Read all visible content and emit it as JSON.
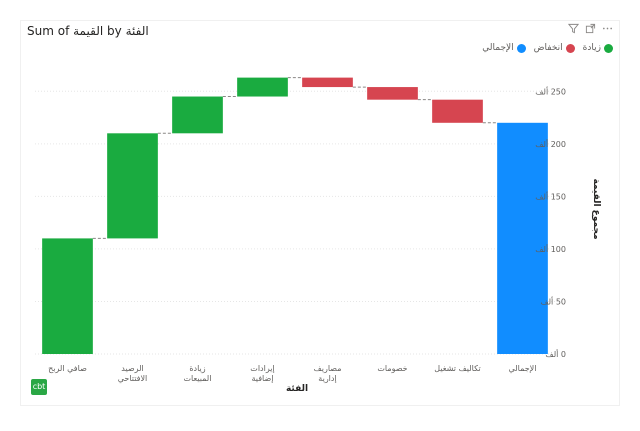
{
  "header": {
    "title_prefix": "Sum of",
    "title_measure": "القيمة",
    "title_by": "by",
    "title_dimension": "الفئة",
    "icons": [
      "filter-icon",
      "focus-mode-icon",
      "more-options-icon"
    ]
  },
  "legend": {
    "items": [
      {
        "label": "الإجمالي",
        "color": "#118dff"
      },
      {
        "label": "انخفاض",
        "color": "#d64550"
      },
      {
        "label": "زيادة",
        "color": "#1aab40"
      }
    ]
  },
  "badge": {
    "text": "cbt"
  },
  "chart_data": {
    "type": "waterfall",
    "xlabel": "الفئة",
    "ylabel": "مجموع القيمة",
    "ylim": [
      0,
      275
    ],
    "grid": true,
    "y_axis_position": "right",
    "y_ticks": [
      0,
      50,
      100,
      150,
      200,
      250
    ],
    "y_tick_labels": [
      "0 ألف",
      "50 ألف",
      "100 ألف",
      "150 ألف",
      "200 ألف",
      "250 ألف"
    ],
    "colors": {
      "total": "#118dff",
      "decrease": "#d64550",
      "increase": "#1aab40"
    },
    "categories": [
      "صافي الربح",
      "الرصيد الافتتاحي",
      "زيادة المبيعات",
      "إيرادات إضافية",
      "مصاريف إدارية",
      "خصومات",
      "تكاليف تشغيل",
      "الإجمالي"
    ],
    "bars": [
      {
        "category": "صافي الربح",
        "start": 0,
        "end": 110,
        "kind": "increase"
      },
      {
        "category": "الرصيد الافتتاحي",
        "start": 110,
        "end": 210,
        "kind": "increase"
      },
      {
        "category": "زيادة المبيعات",
        "start": 210,
        "end": 245,
        "kind": "increase"
      },
      {
        "category": "إيرادات إضافية",
        "start": 245,
        "end": 263,
        "kind": "increase"
      },
      {
        "category": "مصاريف إدارية",
        "start": 263,
        "end": 254,
        "kind": "decrease"
      },
      {
        "category": "خصومات",
        "start": 254,
        "end": 242,
        "kind": "decrease"
      },
      {
        "category": "تكاليف تشغيل",
        "start": 242,
        "end": 220,
        "kind": "decrease"
      },
      {
        "category": "الإجمالي",
        "start": 0,
        "end": 220,
        "kind": "total"
      }
    ]
  }
}
